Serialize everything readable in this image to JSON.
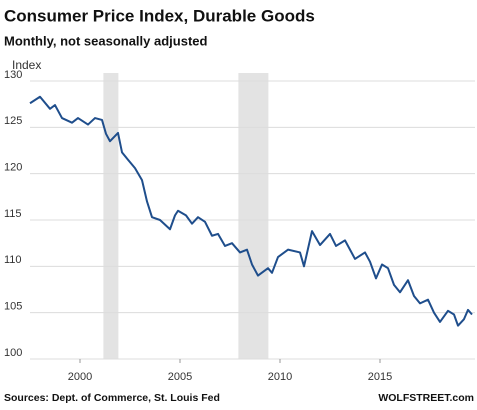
{
  "chart_data": {
    "type": "line",
    "title": "Consumer Price Index, Durable Goods",
    "subtitle": "Monthly, not seasonally adjusted",
    "y_label": "Index",
    "source": "Sources: Dept. of Commerce, St. Louis Fed",
    "credit": "WOLFSTREET.com",
    "x": [
      1997.5,
      1998.0,
      1998.5,
      1998.75,
      1999.1,
      1999.6,
      1999.9,
      2000.4,
      2000.75,
      2001.1,
      2001.3,
      2001.5,
      2001.9,
      2002.1,
      2002.4,
      2002.75,
      2003.1,
      2003.35,
      2003.6,
      2004.0,
      2004.5,
      2004.75,
      2004.9,
      2005.3,
      2005.6,
      2005.9,
      2006.25,
      2006.6,
      2006.9,
      2007.25,
      2007.6,
      2008.0,
      2008.35,
      2008.6,
      2008.9,
      2009.4,
      2009.6,
      2009.9,
      2010.4,
      2011.0,
      2011.2,
      2011.6,
      2012.0,
      2012.5,
      2012.8,
      2013.25,
      2013.75,
      2014.25,
      2014.5,
      2014.8,
      2015.1,
      2015.4,
      2015.7,
      2016.0,
      2016.4,
      2016.7,
      2017.0,
      2017.4,
      2017.7,
      2018.0,
      2018.4,
      2018.7,
      2018.9,
      2019.2,
      2019.4,
      2019.6
    ],
    "series": [
      {
        "color": "#1f4e8c",
        "values": [
          127.6,
          128.3,
          127.0,
          127.4,
          126.0,
          125.5,
          126.0,
          125.3,
          126.0,
          125.8,
          124.3,
          123.5,
          124.4,
          122.3,
          121.5,
          120.6,
          119.3,
          117.0,
          115.3,
          115.0,
          114.0,
          115.5,
          116.0,
          115.5,
          114.6,
          115.3,
          114.8,
          113.3,
          113.5,
          112.2,
          112.5,
          111.5,
          111.8,
          110.2,
          109.0,
          109.8,
          109.3,
          111.0,
          111.8,
          111.5,
          110.0,
          113.8,
          112.3,
          113.5,
          112.2,
          112.8,
          110.8,
          111.5,
          110.5,
          108.7,
          110.2,
          109.8,
          108.0,
          107.2,
          108.5,
          106.8,
          106.0,
          106.4,
          105.0,
          104.0,
          105.2,
          104.8,
          103.6,
          104.3,
          105.3,
          104.8
        ]
      }
    ],
    "recessions": [
      [
        2001.17,
        2001.92
      ],
      [
        2007.92,
        2009.42
      ]
    ],
    "recession_color": "#e3e3e3",
    "xlim": [
      1997.5,
      2019.75
    ],
    "xticks": [
      2000,
      2005,
      2010,
      2015
    ],
    "ylim": [
      100,
      130
    ],
    "yticks": [
      100,
      105,
      110,
      115,
      120,
      125,
      130
    ],
    "grid": true
  }
}
